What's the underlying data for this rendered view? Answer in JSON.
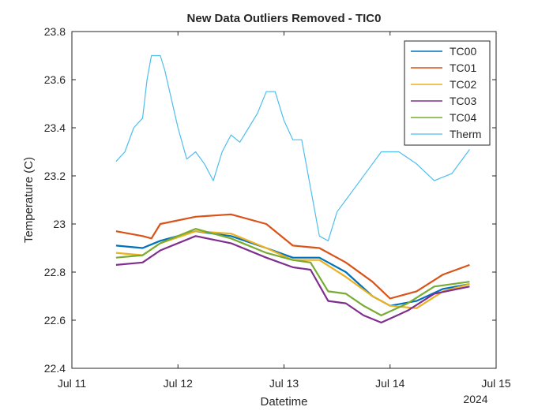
{
  "chart_data": {
    "type": "line",
    "title": "New Data Outliers Removed - TIC0",
    "xlabel": "Datetime",
    "ylabel": "Temperature (C)",
    "year_label": "2024",
    "x_ticks": [
      "Jul 11",
      "Jul 12",
      "Jul 13",
      "Jul 14",
      "Jul 15"
    ],
    "y_ticks": [
      "22.4",
      "22.6",
      "22.8",
      "23",
      "23.2",
      "23.4",
      "23.6",
      "23.8"
    ],
    "xlim": [
      "2024-07-11 00:00",
      "2024-07-15 00:00"
    ],
    "ylim": [
      22.4,
      23.8
    ],
    "grid": false,
    "legend_position": "top-right",
    "series": [
      {
        "name": "TC00",
        "color": "#0072BD",
        "x": [
          "2024-07-11 10:00",
          "2024-07-11 16:00",
          "2024-07-11 20:00",
          "2024-07-12 04:00",
          "2024-07-12 12:00",
          "2024-07-12 20:00",
          "2024-07-13 02:00",
          "2024-07-13 08:00",
          "2024-07-13 14:00",
          "2024-07-13 20:00",
          "2024-07-14 00:00",
          "2024-07-14 06:00",
          "2024-07-14 12:00",
          "2024-07-14 18:00"
        ],
        "y": [
          22.91,
          22.9,
          22.93,
          22.97,
          22.95,
          22.9,
          22.86,
          22.86,
          22.8,
          22.7,
          22.66,
          22.68,
          22.73,
          22.75
        ]
      },
      {
        "name": "TC01",
        "color": "#D95319",
        "x": [
          "2024-07-11 10:00",
          "2024-07-11 16:00",
          "2024-07-11 18:00",
          "2024-07-11 20:00",
          "2024-07-12 04:00",
          "2024-07-12 12:00",
          "2024-07-12 20:00",
          "2024-07-13 02:00",
          "2024-07-13 08:00",
          "2024-07-13 14:00",
          "2024-07-13 20:00",
          "2024-07-14 00:00",
          "2024-07-14 06:00",
          "2024-07-14 12:00",
          "2024-07-14 18:00"
        ],
        "y": [
          22.97,
          22.95,
          22.94,
          23.0,
          23.03,
          23.04,
          23.0,
          22.91,
          22.9,
          22.84,
          22.76,
          22.69,
          22.72,
          22.79,
          22.83
        ]
      },
      {
        "name": "TC02",
        "color": "#EDB120",
        "x": [
          "2024-07-11 10:00",
          "2024-07-11 16:00",
          "2024-07-11 20:00",
          "2024-07-12 04:00",
          "2024-07-12 12:00",
          "2024-07-12 20:00",
          "2024-07-13 02:00",
          "2024-07-13 08:00",
          "2024-07-13 14:00",
          "2024-07-13 20:00",
          "2024-07-14 00:00",
          "2024-07-14 06:00",
          "2024-07-14 12:00",
          "2024-07-14 18:00"
        ],
        "y": [
          22.88,
          22.87,
          22.92,
          22.97,
          22.96,
          22.9,
          22.85,
          22.85,
          22.78,
          22.7,
          22.66,
          22.65,
          22.72,
          22.75
        ]
      },
      {
        "name": "TC03",
        "color": "#7E2F8E",
        "x": [
          "2024-07-11 10:00",
          "2024-07-11 16:00",
          "2024-07-11 20:00",
          "2024-07-12 04:00",
          "2024-07-12 12:00",
          "2024-07-12 20:00",
          "2024-07-13 02:00",
          "2024-07-13 06:00",
          "2024-07-13 10:00",
          "2024-07-13 14:00",
          "2024-07-13 18:00",
          "2024-07-13 22:00",
          "2024-07-14 04:00",
          "2024-07-14 10:00",
          "2024-07-14 18:00"
        ],
        "y": [
          22.83,
          22.84,
          22.89,
          22.95,
          22.92,
          22.86,
          22.82,
          22.81,
          22.68,
          22.67,
          22.62,
          22.59,
          22.64,
          22.71,
          22.74
        ]
      },
      {
        "name": "TC04",
        "color": "#77AC30",
        "x": [
          "2024-07-11 10:00",
          "2024-07-11 16:00",
          "2024-07-11 20:00",
          "2024-07-12 04:00",
          "2024-07-12 12:00",
          "2024-07-12 20:00",
          "2024-07-13 02:00",
          "2024-07-13 06:00",
          "2024-07-13 10:00",
          "2024-07-13 14:00",
          "2024-07-13 18:00",
          "2024-07-13 22:00",
          "2024-07-14 04:00",
          "2024-07-14 10:00",
          "2024-07-14 18:00"
        ],
        "y": [
          22.86,
          22.87,
          22.92,
          22.98,
          22.94,
          22.88,
          22.85,
          22.84,
          22.72,
          22.71,
          22.66,
          22.62,
          22.67,
          22.74,
          22.76
        ]
      },
      {
        "name": "Therm",
        "color": "#4DBEEE",
        "x": [
          "2024-07-11 10:00",
          "2024-07-11 12:00",
          "2024-07-11 14:00",
          "2024-07-11 16:00",
          "2024-07-11 17:00",
          "2024-07-11 18:00",
          "2024-07-11 20:00",
          "2024-07-11 21:00",
          "2024-07-11 22:00",
          "2024-07-12 00:00",
          "2024-07-12 02:00",
          "2024-07-12 04:00",
          "2024-07-12 06:00",
          "2024-07-12 08:00",
          "2024-07-12 10:00",
          "2024-07-12 12:00",
          "2024-07-12 14:00",
          "2024-07-12 16:00",
          "2024-07-12 18:00",
          "2024-07-12 20:00",
          "2024-07-12 22:00",
          "2024-07-13 00:00",
          "2024-07-13 02:00",
          "2024-07-13 04:00",
          "2024-07-13 06:00",
          "2024-07-13 08:00",
          "2024-07-13 10:00",
          "2024-07-13 12:00",
          "2024-07-13 16:00",
          "2024-07-13 20:00",
          "2024-07-13 22:00",
          "2024-07-14 00:00",
          "2024-07-14 02:00",
          "2024-07-14 06:00",
          "2024-07-14 10:00",
          "2024-07-14 14:00",
          "2024-07-14 18:00"
        ],
        "y": [
          23.26,
          23.3,
          23.4,
          23.44,
          23.6,
          23.7,
          23.7,
          23.64,
          23.56,
          23.4,
          23.27,
          23.3,
          23.25,
          23.18,
          23.3,
          23.37,
          23.34,
          23.4,
          23.46,
          23.55,
          23.55,
          23.43,
          23.35,
          23.35,
          23.15,
          22.95,
          22.93,
          23.05,
          23.15,
          23.25,
          23.3,
          23.3,
          23.3,
          23.25,
          23.18,
          23.21,
          23.31
        ]
      }
    ]
  }
}
